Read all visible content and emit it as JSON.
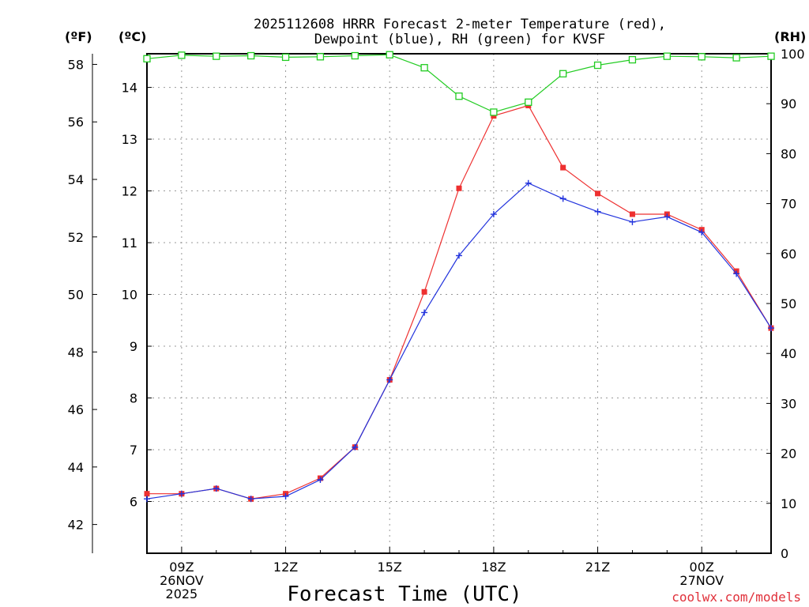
{
  "chart_data": {
    "type": "line",
    "title_line1": "2025112608 HRRR Forecast 2-meter Temperature (red),",
    "title_line2": "Dewpoint (blue), RH (green) for KVSF",
    "xlabel": "Forecast Time (UTC)",
    "credit": "coolwx.com/models",
    "units": {
      "fahrenheit": "(ºF)",
      "celsius": "(ºC)",
      "rh": "(RH)"
    },
    "x_hours": [
      8,
      9,
      10,
      11,
      12,
      13,
      14,
      15,
      16,
      17,
      18,
      19,
      20,
      21,
      22,
      23,
      24,
      25,
      26
    ],
    "xlim": [
      8,
      26
    ],
    "x_ticks": [
      {
        "hour": 9,
        "lines": [
          "09Z",
          "26NOV",
          "2025"
        ]
      },
      {
        "hour": 12,
        "lines": [
          "12Z"
        ]
      },
      {
        "hour": 15,
        "lines": [
          "15Z"
        ]
      },
      {
        "hour": 18,
        "lines": [
          "18Z"
        ]
      },
      {
        "hour": 21,
        "lines": [
          "21Z"
        ]
      },
      {
        "hour": 24,
        "lines": [
          "00Z",
          "27NOV"
        ]
      }
    ],
    "celsius_axis": {
      "ylim": [
        5.0,
        14.65
      ],
      "ticks": [
        6,
        7,
        8,
        9,
        10,
        11,
        12,
        13,
        14
      ]
    },
    "fahrenheit_axis": {
      "ticks": [
        42,
        44,
        46,
        48,
        50,
        52,
        54,
        56,
        58
      ]
    },
    "rh_axis": {
      "ylim": [
        0,
        100
      ],
      "ticks": [
        0,
        10,
        20,
        30,
        40,
        50,
        60,
        70,
        80,
        90,
        100
      ]
    },
    "series": [
      {
        "name": "Temperature",
        "axis": "celsius",
        "color": "#ee3030",
        "marker": "filled-square",
        "values": [
          6.15,
          6.15,
          6.25,
          6.05,
          6.15,
          6.45,
          7.05,
          8.35,
          10.05,
          12.05,
          13.45,
          13.65,
          12.45,
          11.95,
          11.55,
          11.55,
          11.25,
          10.45,
          9.35
        ]
      },
      {
        "name": "Dewpoint",
        "axis": "celsius",
        "color": "#2233dd",
        "marker": "plus",
        "values": [
          6.05,
          6.15,
          6.25,
          6.05,
          6.1,
          6.42,
          7.05,
          8.35,
          9.65,
          10.75,
          11.55,
          12.15,
          11.85,
          11.6,
          11.4,
          11.5,
          11.2,
          10.4,
          9.35
        ]
      },
      {
        "name": "RH",
        "axis": "rh",
        "color": "#22cc22",
        "marker": "open-square",
        "values": [
          99.0,
          99.7,
          99.5,
          99.6,
          99.3,
          99.4,
          99.6,
          99.8,
          97.2,
          91.5,
          88.3,
          90.3,
          96.0,
          97.7,
          98.8,
          99.5,
          99.4,
          99.2,
          99.5
        ]
      }
    ]
  }
}
